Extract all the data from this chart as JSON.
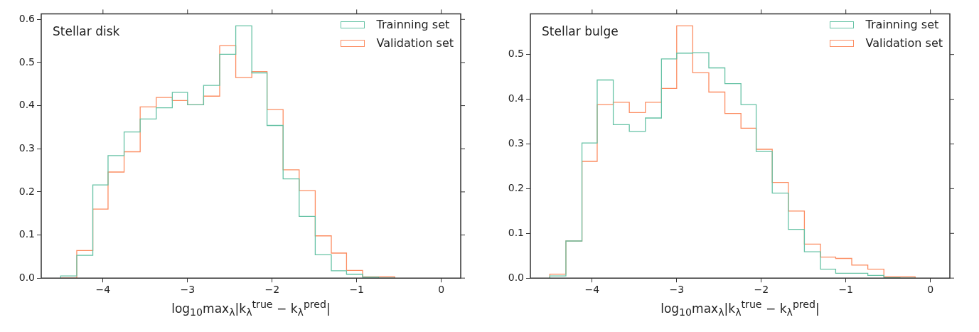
{
  "chart_data": [
    {
      "type": "histogram",
      "title": "Stellar disk",
      "xlabel": "log$_{10}$max$_{λ}$|k$_{λ}$$^{true}$ − k$_{λ}$$^{pred}$|",
      "legend": "top right",
      "grid": false,
      "bins": [
        -4.5,
        -4.31,
        -4.12,
        -3.94,
        -3.75,
        -3.56,
        -3.37,
        -3.18,
        -3.0,
        -2.81,
        -2.62,
        -2.43,
        -2.24,
        -2.06,
        -1.87,
        -1.68,
        -1.49,
        -1.3,
        -1.12,
        -0.93,
        -0.74,
        -0.55
      ],
      "xlim": [
        -4.73,
        0.23
      ],
      "xticks": [
        -4,
        -3,
        -2,
        -1,
        0
      ],
      "ylim": [
        0,
        0.613
      ],
      "yticks": [
        {
          "value": 0,
          "label": "0.0"
        },
        {
          "value": 0.1,
          "label": "0.1"
        },
        {
          "value": 0.2,
          "label": "0.2"
        },
        {
          "value": 0.3,
          "label": "0.3"
        },
        {
          "value": 0.4,
          "label": "0.4"
        },
        {
          "value": 0.5,
          "label": "0.5"
        },
        {
          "value": 0.6,
          "label": "0.6"
        }
      ],
      "series": [
        {
          "name": "Trainning set",
          "color": "#66c2a5",
          "values": [
            0.005,
            0.053,
            0.216,
            0.284,
            0.339,
            0.369,
            0.395,
            0.431,
            0.402,
            0.447,
            0.519,
            0.585,
            0.476,
            0.354,
            0.23,
            0.143,
            0.054,
            0.017,
            0.009,
            0.002,
            0
          ]
        },
        {
          "name": "Validation set",
          "color": "#fc8d62",
          "values": [
            0,
            0.064,
            0.16,
            0.246,
            0.293,
            0.397,
            0.419,
            0.412,
            0.402,
            0.422,
            0.539,
            0.465,
            0.479,
            0.391,
            0.251,
            0.203,
            0.098,
            0.058,
            0.018,
            0.003,
            0.003
          ]
        }
      ]
    },
    {
      "type": "histogram",
      "title": "Stellar bulge",
      "xlabel": "log$_{10}$max$_{λ}$|k$_{λ}$$^{true}$ − k$_{λ}$$^{pred}$|",
      "legend": "top right",
      "grid": false,
      "bins": [
        -4.5,
        -4.31,
        -4.12,
        -3.94,
        -3.75,
        -3.56,
        -3.37,
        -3.18,
        -3.0,
        -2.81,
        -2.62,
        -2.43,
        -2.24,
        -2.06,
        -1.87,
        -1.68,
        -1.49,
        -1.3,
        -1.12,
        -0.93,
        -0.74,
        -0.55,
        -0.36,
        -0.18
      ],
      "xlim": [
        -4.73,
        0.23
      ],
      "xticks": [
        -4,
        -3,
        -2,
        -1,
        0
      ],
      "ylim": [
        0,
        0.591
      ],
      "yticks": [
        {
          "value": 0,
          "label": "0.0"
        },
        {
          "value": 0.1,
          "label": "0.1"
        },
        {
          "value": 0.2,
          "label": "0.2"
        },
        {
          "value": 0.3,
          "label": "0.3"
        },
        {
          "value": 0.4,
          "label": "0.4"
        },
        {
          "value": 0.5,
          "label": "0.5"
        }
      ],
      "series": [
        {
          "name": "Trainning set",
          "color": "#66c2a5",
          "values": [
            0.005,
            0.083,
            0.302,
            0.443,
            0.343,
            0.328,
            0.358,
            0.49,
            0.503,
            0.504,
            0.47,
            0.435,
            0.388,
            0.283,
            0.19,
            0.109,
            0.059,
            0.02,
            0.011,
            0.011,
            0.006,
            0.001,
            0
          ]
        },
        {
          "name": "Validation set",
          "color": "#fc8d62",
          "values": [
            0.009,
            0.083,
            0.261,
            0.388,
            0.393,
            0.37,
            0.393,
            0.424,
            0.564,
            0.459,
            0.416,
            0.368,
            0.335,
            0.288,
            0.214,
            0.15,
            0.076,
            0.047,
            0.044,
            0.029,
            0.02,
            0.003,
            0.003
          ]
        }
      ]
    }
  ]
}
